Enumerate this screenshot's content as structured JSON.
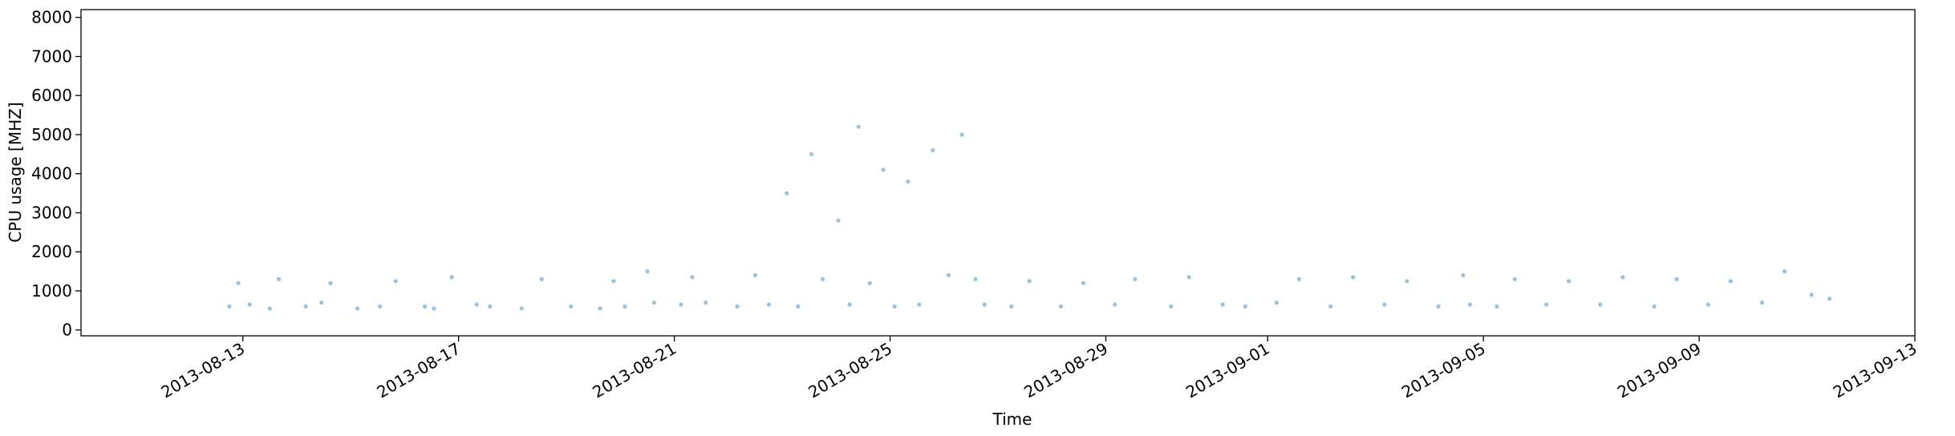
{
  "chart_data": {
    "type": "scatter",
    "xlabel": "Time",
    "ylabel": "CPU usage [MHZ]",
    "xlim": [
      "2013-08-10",
      "2013-09-13"
    ],
    "ylim": [
      -150,
      8200
    ],
    "x_ticks": [
      "2013-08-13",
      "2013-08-17",
      "2013-08-21",
      "2013-08-25",
      "2013-08-29",
      "2013-09-01",
      "2013-09-05",
      "2013-09-09",
      "2013-09-13"
    ],
    "y_ticks": [
      0,
      1000,
      2000,
      3000,
      4000,
      5000,
      6000,
      7000,
      8000
    ],
    "grid": false,
    "legend": "none",
    "marker_color": "#1f77b4",
    "marker_alpha": 0.45,
    "x_range_data": [
      "2013-08-12",
      "2013-09-11"
    ],
    "series": [
      {
        "x": [
          "2013-08-12T18:00",
          "2013-08-12T22:00",
          "2013-08-13T03:00",
          "2013-08-13T12:00",
          "2013-08-13T16:00",
          "2013-08-14T04:00",
          "2013-08-14T11:00",
          "2013-08-14T15:00",
          "2013-08-15T03:00",
          "2013-08-15T13:00",
          "2013-08-15T20:00",
          "2013-08-16T09:00",
          "2013-08-16T13:00",
          "2013-08-16T21:00",
          "2013-08-17T08:00",
          "2013-08-17T14:00",
          "2013-08-18T04:00",
          "2013-08-18T13:00",
          "2013-08-19T02:00",
          "2013-08-19T15:00",
          "2013-08-19T21:00",
          "2013-08-20T02:00",
          "2013-08-20T12:00",
          "2013-08-20T15:00",
          "2013-08-21T03:00",
          "2013-08-21T08:00",
          "2013-08-21T14:00",
          "2013-08-22T04:00",
          "2013-08-22T12:00",
          "2013-08-22T18:00",
          "2013-08-23T02:00",
          "2013-08-23T07:00",
          "2013-08-23T13:00",
          "2013-08-23T18:00",
          "2013-08-24T01:00",
          "2013-08-24T06:00",
          "2013-08-24T10:00",
          "2013-08-24T15:00",
          "2013-08-24T21:00",
          "2013-08-25T02:00",
          "2013-08-25T08:00",
          "2013-08-25T13:00",
          "2013-08-25T19:00",
          "2013-08-26T02:00",
          "2013-08-26T08:00",
          "2013-08-26T14:00",
          "2013-08-26T18:00",
          "2013-08-27T06:00",
          "2013-08-27T14:00",
          "2013-08-28T04:00",
          "2013-08-28T14:00",
          "2013-08-29T04:00",
          "2013-08-29T13:00",
          "2013-08-30T05:00",
          "2013-08-30T13:00",
          "2013-08-31T04:00",
          "2013-08-31T14:00",
          "2013-09-01T04:00",
          "2013-09-01T14:00",
          "2013-09-02T04:00",
          "2013-09-02T14:00",
          "2013-09-03T04:00",
          "2013-09-03T14:00",
          "2013-09-04T04:00",
          "2013-09-04T15:00",
          "2013-09-04T18:00",
          "2013-09-05T06:00",
          "2013-09-05T14:00",
          "2013-09-06T04:00",
          "2013-09-06T14:00",
          "2013-09-07T04:00",
          "2013-09-07T14:00",
          "2013-09-08T04:00",
          "2013-09-08T14:00",
          "2013-09-09T04:00",
          "2013-09-09T14:00",
          "2013-09-10T04:00",
          "2013-09-10T14:00",
          "2013-09-11T02:00",
          "2013-09-11T10:00"
        ],
        "y": [
          600,
          1200,
          650,
          550,
          1300,
          600,
          700,
          1200,
          550,
          600,
          1250,
          600,
          550,
          1350,
          650,
          600,
          550,
          1300,
          600,
          550,
          1250,
          600,
          1500,
          700,
          650,
          1350,
          700,
          600,
          1400,
          650,
          3500,
          600,
          4500,
          1300,
          2800,
          650,
          5200,
          1200,
          4100,
          600,
          3800,
          650,
          4600,
          1400,
          5000,
          1300,
          650,
          600,
          1250,
          600,
          1200,
          650,
          1300,
          600,
          1350,
          650,
          600,
          700,
          1300,
          600,
          1350,
          650,
          1250,
          600,
          1400,
          650,
          600,
          1300,
          650,
          1250,
          650,
          1350,
          600,
          1300,
          650,
          1250,
          700,
          1500,
          900,
          800
        ]
      }
    ]
  }
}
